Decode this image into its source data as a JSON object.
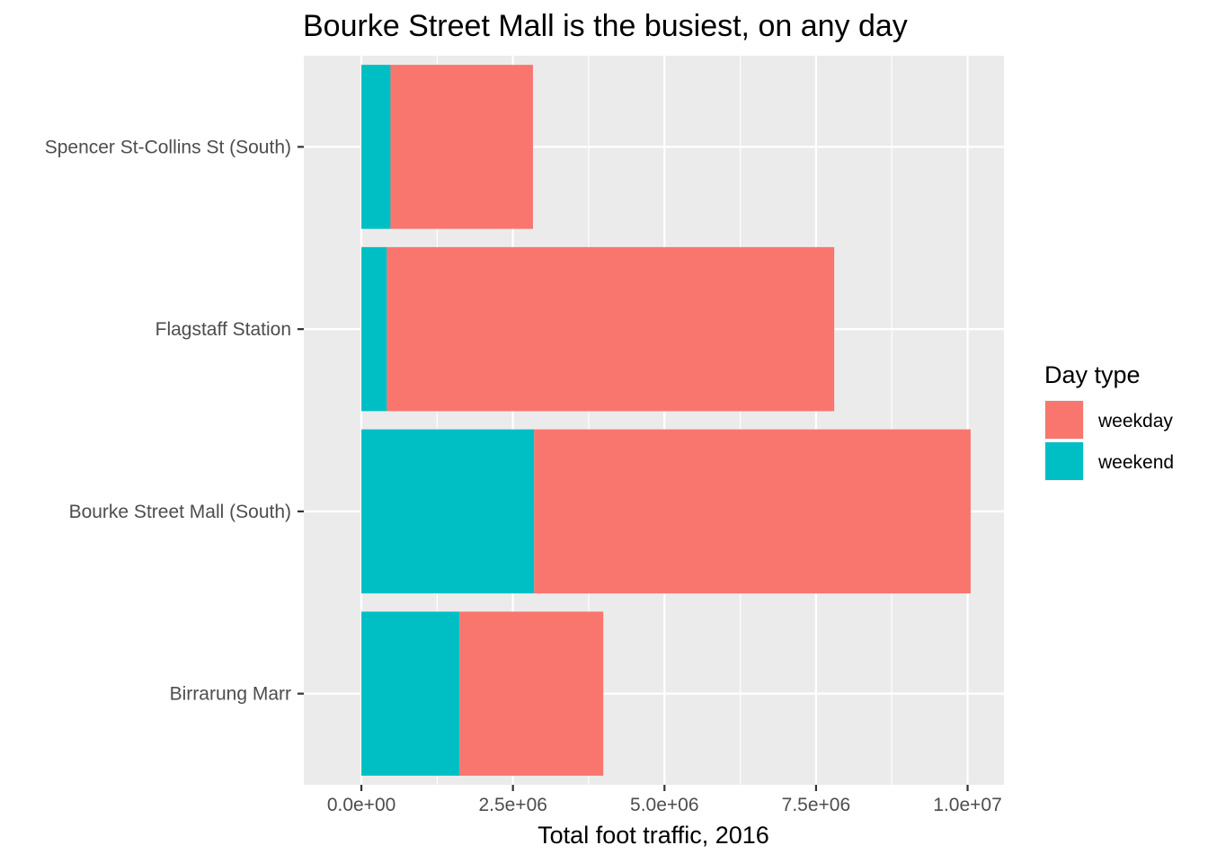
{
  "chart_data": {
    "type": "bar",
    "orientation": "horizontal",
    "stacked": true,
    "title": "Bourke Street Mall is the busiest, on any day",
    "xlabel": "Total foot traffic, 2016",
    "ylabel": "",
    "xlim": [
      -950000,
      10600000
    ],
    "x_ticks": [
      0,
      2500000,
      5000000,
      7500000,
      10000000
    ],
    "x_tick_labels": [
      "0.0e+00",
      "2.5e+06",
      "5.0e+06",
      "7.5e+06",
      "1.0e+07"
    ],
    "categories": [
      "Spencer St-Collins St (South)",
      "Flagstaff Station",
      "Bourke Street Mall (South)",
      "Birrarung Marr"
    ],
    "series": [
      {
        "name": "weekend",
        "color": "#00BFC4",
        "values": [
          480000,
          420000,
          2850000,
          1620000
        ]
      },
      {
        "name": "weekday",
        "color": "#F8766D",
        "values": [
          2350000,
          7380000,
          7200000,
          2370000
        ]
      }
    ],
    "legend": {
      "title": "Day type",
      "position": "right",
      "entries": [
        {
          "name": "weekday",
          "color": "#F8766D"
        },
        {
          "name": "weekend",
          "color": "#00BFC4"
        }
      ]
    },
    "grid": true,
    "panel_background": "#EBEBEB",
    "gridline_color": "#FFFFFF"
  }
}
